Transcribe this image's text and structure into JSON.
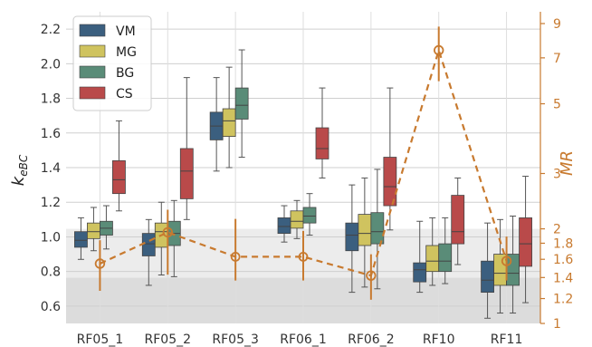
{
  "chart_data": {
    "type": "box",
    "categories": [
      "RF05_1",
      "RF05_2",
      "RF05_3",
      "RF06_1",
      "RF06_2",
      "RF10",
      "RF11"
    ],
    "left_axis": {
      "label_main": "k",
      "label_sub": "eBC",
      "ylim": [
        0.5,
        2.3
      ],
      "ticks": [
        0.6,
        0.8,
        1.0,
        1.2,
        1.4,
        1.6,
        1.8,
        2.0,
        2.2
      ],
      "tick_labels": [
        "0.6",
        "0.8",
        "1.0",
        "1.2",
        "1.4",
        "1.6",
        "1.8",
        "2.0",
        "2.2"
      ]
    },
    "right_axis": {
      "label": "MR",
      "scale": "log",
      "ticks": [
        1,
        1.2,
        1.4,
        1.6,
        1.8,
        2,
        3,
        5,
        7,
        9
      ],
      "tick_labels": [
        "1",
        "1.2",
        "1.4",
        "1.6",
        "1.8",
        "2",
        "3",
        "5",
        "7",
        "9"
      ],
      "color": "#c87a2f"
    },
    "legend": {
      "placement": "top-left",
      "entries": [
        {
          "key": "VM",
          "label": "VM",
          "color": "#3b5f7f"
        },
        {
          "key": "MG",
          "label": "MG",
          "color": "#cfc35f"
        },
        {
          "key": "BG",
          "label": "BG",
          "color": "#5a8c78"
        },
        {
          "key": "CS",
          "label": "CS",
          "color": "#b94a4a"
        }
      ]
    },
    "series": [
      {
        "name": "VM",
        "boxes": [
          {
            "whislo": 0.87,
            "q1": 0.94,
            "med": 0.98,
            "q3": 1.03,
            "whishi": 1.11
          },
          {
            "whislo": 0.72,
            "q1": 0.89,
            "med": 0.96,
            "q3": 1.02,
            "whishi": 1.1
          },
          {
            "whislo": 1.38,
            "q1": 1.56,
            "med": 1.64,
            "q3": 1.72,
            "whishi": 1.92
          },
          {
            "whislo": 0.97,
            "q1": 1.02,
            "med": 1.06,
            "q3": 1.11,
            "whishi": 1.18
          },
          {
            "whislo": 0.68,
            "q1": 0.92,
            "med": 1.01,
            "q3": 1.08,
            "whishi": 1.3
          },
          {
            "whislo": 0.68,
            "q1": 0.74,
            "med": 0.81,
            "q3": 0.85,
            "whishi": 1.09
          },
          {
            "whislo": 0.53,
            "q1": 0.68,
            "med": 0.75,
            "q3": 0.86,
            "whishi": 1.08
          }
        ]
      },
      {
        "name": "MG",
        "boxes": [
          {
            "whislo": 0.92,
            "q1": 0.99,
            "med": 1.03,
            "q3": 1.08,
            "whishi": 1.17
          },
          {
            "whislo": 0.78,
            "q1": 0.94,
            "med": 1.03,
            "q3": 1.08,
            "whishi": 1.2
          },
          {
            "whislo": 1.4,
            "q1": 1.58,
            "med": 1.67,
            "q3": 1.74,
            "whishi": 1.98
          },
          {
            "whislo": 0.99,
            "q1": 1.05,
            "med": 1.09,
            "q3": 1.15,
            "whishi": 1.21
          },
          {
            "whislo": 0.71,
            "q1": 0.95,
            "med": 1.02,
            "q3": 1.13,
            "whishi": 1.34
          },
          {
            "whislo": 0.72,
            "q1": 0.8,
            "med": 0.86,
            "q3": 0.95,
            "whishi": 1.11
          },
          {
            "whislo": 0.56,
            "q1": 0.72,
            "med": 0.79,
            "q3": 0.9,
            "whishi": 1.1
          }
        ]
      },
      {
        "name": "BG",
        "boxes": [
          {
            "whislo": 0.93,
            "q1": 1.01,
            "med": 1.05,
            "q3": 1.09,
            "whishi": 1.18
          },
          {
            "whislo": 0.77,
            "q1": 0.95,
            "med": 1.02,
            "q3": 1.09,
            "whishi": 1.21
          },
          {
            "whislo": 1.46,
            "q1": 1.68,
            "med": 1.76,
            "q3": 1.86,
            "whishi": 2.08
          },
          {
            "whislo": 1.01,
            "q1": 1.08,
            "med": 1.12,
            "q3": 1.17,
            "whishi": 1.25
          },
          {
            "whislo": 0.7,
            "q1": 0.96,
            "med": 1.03,
            "q3": 1.14,
            "whishi": 1.39
          },
          {
            "whislo": 0.73,
            "q1": 0.8,
            "med": 0.86,
            "q3": 0.96,
            "whishi": 1.11
          },
          {
            "whislo": 0.56,
            "q1": 0.72,
            "med": 0.79,
            "q3": 0.9,
            "whishi": 1.12
          }
        ]
      },
      {
        "name": "CS",
        "boxes": [
          {
            "whislo": 1.15,
            "q1": 1.25,
            "med": 1.33,
            "q3": 1.44,
            "whishi": 1.67
          },
          {
            "whislo": 1.1,
            "q1": 1.22,
            "med": 1.38,
            "q3": 1.51,
            "whishi": 1.92
          },
          null,
          {
            "whislo": 1.34,
            "q1": 1.45,
            "med": 1.51,
            "q3": 1.63,
            "whishi": 1.86
          },
          {
            "whislo": 1.04,
            "q1": 1.18,
            "med": 1.29,
            "q3": 1.46,
            "whishi": 1.86
          },
          {
            "whislo": 0.84,
            "q1": 0.96,
            "med": 1.03,
            "q3": 1.24,
            "whishi": 1.34
          },
          {
            "whislo": 0.62,
            "q1": 0.83,
            "med": 0.96,
            "q3": 1.11,
            "whishi": 1.35
          }
        ]
      }
    ],
    "mr_series": {
      "style": "dashed",
      "color": "#c87a2f",
      "points": [
        {
          "category": "RF05_1",
          "value": 1.55,
          "err_low": 1.27,
          "err_high": 1.84
        },
        {
          "category": "RF05_2",
          "value": 1.95,
          "err_low": 1.43,
          "err_high": 2.3
        },
        {
          "category": "RF05_3",
          "value": 1.63,
          "err_low": 1.37,
          "err_high": 2.15
        },
        {
          "category": "RF06_1",
          "value": 1.63,
          "err_low": 1.37,
          "err_high": 1.97
        },
        {
          "category": "RF06_2",
          "value": 1.42,
          "err_low": 1.19,
          "err_high": 1.66
        },
        {
          "category": "RF10",
          "value": 7.4,
          "err_low": 5.9,
          "err_high": 8.8
        },
        {
          "category": "RF11",
          "value": 1.58,
          "err_low": 1.37,
          "err_high": 1.89
        }
      ]
    },
    "bands": [
      {
        "from": 1.0,
        "to": 1.4,
        "color": "#dcdcdc"
      },
      {
        "from": 1.4,
        "to": 2.0,
        "color": "#ececec"
      }
    ],
    "grid": true
  }
}
